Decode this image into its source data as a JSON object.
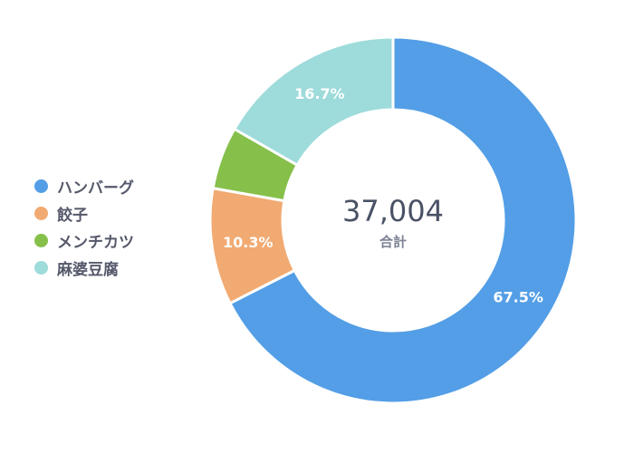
{
  "chart_data": {
    "type": "pie",
    "variant": "donut",
    "total": "37,004",
    "total_caption": "合計",
    "legend_position": "left",
    "categories": [
      "ハンバーグ",
      "餃子",
      "メンチカツ",
      "麻婆豆腐"
    ],
    "values": [
      67.5,
      10.3,
      5.5,
      16.7
    ],
    "slice_labels": [
      "67.5%",
      "10.3%",
      "",
      "16.7%"
    ],
    "colors": [
      "#539ee6",
      "#f1aa72",
      "#86c04b",
      "#9edbdb"
    ]
  }
}
